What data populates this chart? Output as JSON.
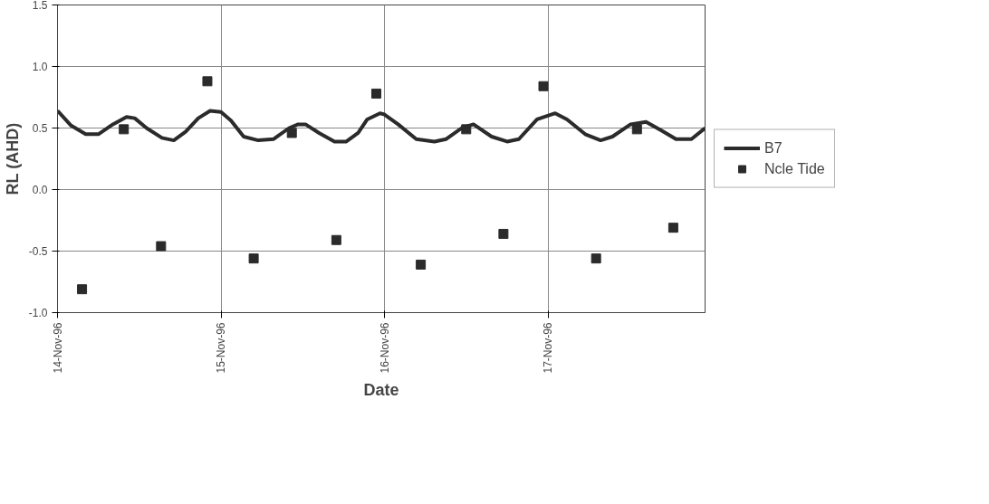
{
  "chart_data": {
    "type": "line",
    "xlabel": "Date",
    "ylabel": "RL (AHD)",
    "xlim": [
      "1996-11-14",
      "1996-11-17T23:04"
    ],
    "xticks": [
      {
        "value": "1996-11-14",
        "label": "14-Nov-96"
      },
      {
        "value": "1996-11-15",
        "label": "15-Nov-96"
      },
      {
        "value": "1996-11-16",
        "label": "16-Nov-96"
      },
      {
        "value": "1996-11-17",
        "label": "17-Nov-96"
      }
    ],
    "ylim": [
      -1.0,
      1.5
    ],
    "yticks": [
      {
        "value": -1.0,
        "label": "-1.0"
      },
      {
        "value": -0.5,
        "label": "-0.5"
      },
      {
        "value": 0.0,
        "label": "0.0"
      },
      {
        "value": 0.5,
        "label": "0.5"
      },
      {
        "value": 1.0,
        "label": "1.0"
      },
      {
        "value": 1.5,
        "label": "1.5"
      }
    ],
    "grid": true,
    "legend": "right",
    "series": [
      {
        "name": "B7",
        "color": "#2b2b2b",
        "marker": "none",
        "x": [
          "1996-11-14T00:00",
          "1996-11-14T02:00",
          "1996-11-14T04:08",
          "1996-11-14T06:00",
          "1996-11-14T08:08",
          "1996-11-14T10:08",
          "1996-11-14T11:20",
          "1996-11-14T13:04",
          "1996-11-14T15:20",
          "1996-11-14T17:04",
          "1996-11-14T18:48",
          "1996-11-14T20:40",
          "1996-11-14T22:24",
          "1996-11-15T00:00",
          "1996-11-15T01:28",
          "1996-11-15T03:20",
          "1996-11-15T05:28",
          "1996-11-15T07:44",
          "1996-11-15T10:00",
          "1996-11-15T11:20",
          "1996-11-15T12:24",
          "1996-11-15T14:24",
          "1996-11-15T16:40",
          "1996-11-15T18:24",
          "1996-11-15T20:08",
          "1996-11-15T21:28",
          "1996-11-15T23:20",
          "1996-11-16T00:00",
          "1996-11-16T02:00",
          "1996-11-16T04:40",
          "1996-11-16T07:20",
          "1996-11-16T09:04",
          "1996-11-16T11:20",
          "1996-11-16T13:04",
          "1996-11-16T15:44",
          "1996-11-16T18:00",
          "1996-11-16T19:44",
          "1996-11-16T22:24",
          "1996-11-17T01:04",
          "1996-11-17T02:48",
          "1996-11-17T05:28",
          "1996-11-17T07:44",
          "1996-11-17T09:28",
          "1996-11-17T12:08",
          "1996-11-17T14:24",
          "1996-11-17T16:40",
          "1996-11-17T18:48",
          "1996-11-17T21:04",
          "1996-11-17T23:04"
        ],
        "values": [
          0.64,
          0.52,
          0.45,
          0.45,
          0.53,
          0.59,
          0.58,
          0.5,
          0.42,
          0.4,
          0.47,
          0.58,
          0.64,
          0.63,
          0.56,
          0.43,
          0.4,
          0.41,
          0.5,
          0.53,
          0.53,
          0.46,
          0.39,
          0.39,
          0.46,
          0.57,
          0.62,
          0.61,
          0.53,
          0.41,
          0.39,
          0.41,
          0.5,
          0.53,
          0.43,
          0.39,
          0.41,
          0.57,
          0.62,
          0.57,
          0.45,
          0.4,
          0.43,
          0.53,
          0.55,
          0.48,
          0.41,
          0.41,
          0.5
        ]
      },
      {
        "name": "Ncle Tide",
        "type": "scatter",
        "color": "#2b2b2b",
        "marker": "square",
        "x": [
          "1996-11-14T03:36",
          "1996-11-14T09:44",
          "1996-11-14T15:12",
          "1996-11-14T22:00",
          "1996-11-15T04:48",
          "1996-11-15T10:24",
          "1996-11-15T16:56",
          "1996-11-15T22:48",
          "1996-11-16T05:20",
          "1996-11-16T12:00",
          "1996-11-16T17:28",
          "1996-11-16T23:20",
          "1996-11-17T07:04",
          "1996-11-17T13:04",
          "1996-11-17T18:24"
        ],
        "values": [
          -0.81,
          0.49,
          -0.46,
          0.88,
          -0.56,
          0.46,
          -0.41,
          0.78,
          -0.61,
          0.49,
          -0.36,
          0.84,
          -0.56,
          0.49,
          -0.31
        ]
      }
    ]
  }
}
